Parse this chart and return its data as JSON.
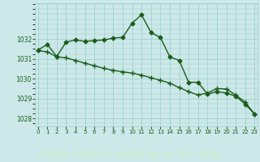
{
  "line1_x": [
    0,
    1,
    2,
    3,
    4,
    5,
    6,
    7,
    8,
    9,
    10,
    11,
    12,
    13,
    14,
    15,
    16,
    17,
    18,
    19,
    20,
    21,
    22,
    23
  ],
  "line1_y": [
    1031.45,
    1031.72,
    1031.12,
    1031.85,
    1031.95,
    1031.88,
    1031.92,
    1031.95,
    1032.05,
    1032.08,
    1032.8,
    1033.22,
    1032.32,
    1032.08,
    1031.1,
    1030.92,
    1029.82,
    1029.82,
    1029.22,
    1029.35,
    1029.28,
    1029.12,
    1028.72,
    1028.22
  ],
  "line2_x": [
    0,
    1,
    2,
    3,
    4,
    5,
    6,
    7,
    8,
    9,
    10,
    11,
    12,
    13,
    14,
    15,
    16,
    17,
    18,
    19,
    20,
    21,
    22,
    23
  ],
  "line2_y": [
    1031.42,
    1031.35,
    1031.1,
    1031.05,
    1030.92,
    1030.78,
    1030.65,
    1030.52,
    1030.42,
    1030.35,
    1030.28,
    1030.18,
    1030.05,
    1029.92,
    1029.78,
    1029.55,
    1029.35,
    1029.18,
    1029.28,
    1029.5,
    1029.48,
    1029.18,
    1028.82,
    1028.22
  ],
  "line_color": "#1a5c1a",
  "bg_color": "#cce8e8",
  "plot_bg_color": "#cce8e8",
  "grid_color": "#99cccc",
  "bottom_bar_color": "#2e6b2e",
  "bottom_text_color": "#cceecc",
  "xlabel": "Graphe pression niveau de la mer (hPa)",
  "ylim_min": 1027.6,
  "ylim_max": 1033.8,
  "xlim_min": -0.3,
  "xlim_max": 23.3,
  "yticks": [
    1028,
    1029,
    1030,
    1031,
    1032
  ],
  "xticks": [
    0,
    1,
    2,
    3,
    4,
    5,
    6,
    7,
    8,
    9,
    10,
    11,
    12,
    13,
    14,
    15,
    16,
    17,
    18,
    19,
    20,
    21,
    22,
    23
  ],
  "marker1": "D",
  "marker2": "+",
  "marker_size1": 2.5,
  "marker_size2": 4.0,
  "line_width": 1.0,
  "tick_fontsize": 5.5,
  "xlabel_fontsize": 7.0,
  "xtick_fontsize": 5.0
}
